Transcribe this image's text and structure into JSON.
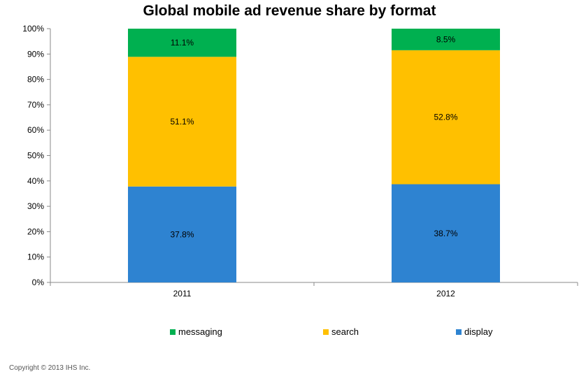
{
  "chart_data": {
    "type": "bar",
    "stacked": true,
    "title": "Global mobile ad revenue share by format",
    "categories": [
      "2011",
      "2012"
    ],
    "series": [
      {
        "name": "display",
        "color": "#2E83D1",
        "values": [
          37.8,
          38.7
        ],
        "labels": [
          "37.8%",
          "38.7%"
        ]
      },
      {
        "name": "search",
        "color": "#FFC000",
        "values": [
          51.1,
          52.8
        ],
        "labels": [
          "51.1%",
          "52.8%"
        ]
      },
      {
        "name": "messaging",
        "color": "#00B050",
        "values": [
          11.1,
          8.5
        ],
        "labels": [
          "11.1%",
          "8.5%"
        ]
      }
    ],
    "yticks": [
      "0%",
      "10%",
      "20%",
      "30%",
      "40%",
      "50%",
      "60%",
      "70%",
      "80%",
      "90%",
      "100%"
    ],
    "ylim": [
      0,
      100
    ],
    "xlabel": "",
    "ylabel": "",
    "grid": false,
    "legend_position": "bottom",
    "legend_order": [
      "messaging",
      "search",
      "display"
    ]
  },
  "footer": {
    "copyright": "Copyright © 2013 IHS Inc."
  }
}
